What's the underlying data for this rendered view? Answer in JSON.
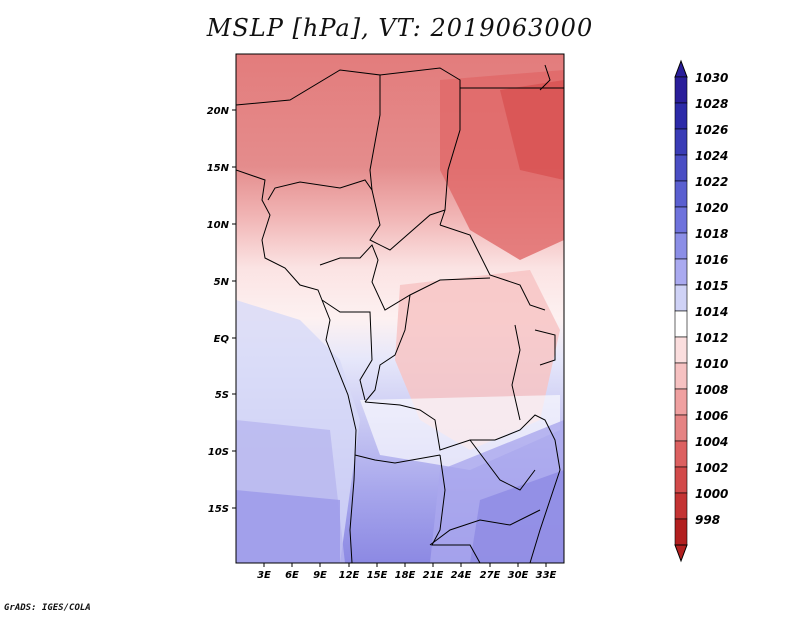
{
  "title": "MSLP [hPa], VT: 2019063000",
  "footer": "GrADS: IGES/COLA",
  "map": {
    "lat_labels": [
      "20N",
      "15N",
      "10N",
      "5N",
      "EQ",
      "5S",
      "10S",
      "15S"
    ],
    "lon_labels": [
      "3E",
      "6E",
      "9E",
      "12E",
      "15E",
      "18E",
      "21E",
      "24E",
      "27E",
      "30E",
      "33E"
    ]
  },
  "colorbar": {
    "levels": [
      "1030",
      "1028",
      "1026",
      "1024",
      "1022",
      "1020",
      "1018",
      "1016",
      "1015",
      "1014",
      "1012",
      "1010",
      "1008",
      "1006",
      "1004",
      "1002",
      "1000",
      "998"
    ],
    "colors": [
      "#2a1e9a",
      "#2c2aa8",
      "#3a3cb6",
      "#4a4ec4",
      "#5a5fd0",
      "#6e72dc",
      "#8b8ee6",
      "#aaaaf0",
      "#cfd2f6",
      "#ffffff",
      "#fbdede",
      "#f6c1c1",
      "#efa0a0",
      "#e58383",
      "#dc6060",
      "#d24a4a",
      "#c43333",
      "#b21f1f"
    ]
  }
}
